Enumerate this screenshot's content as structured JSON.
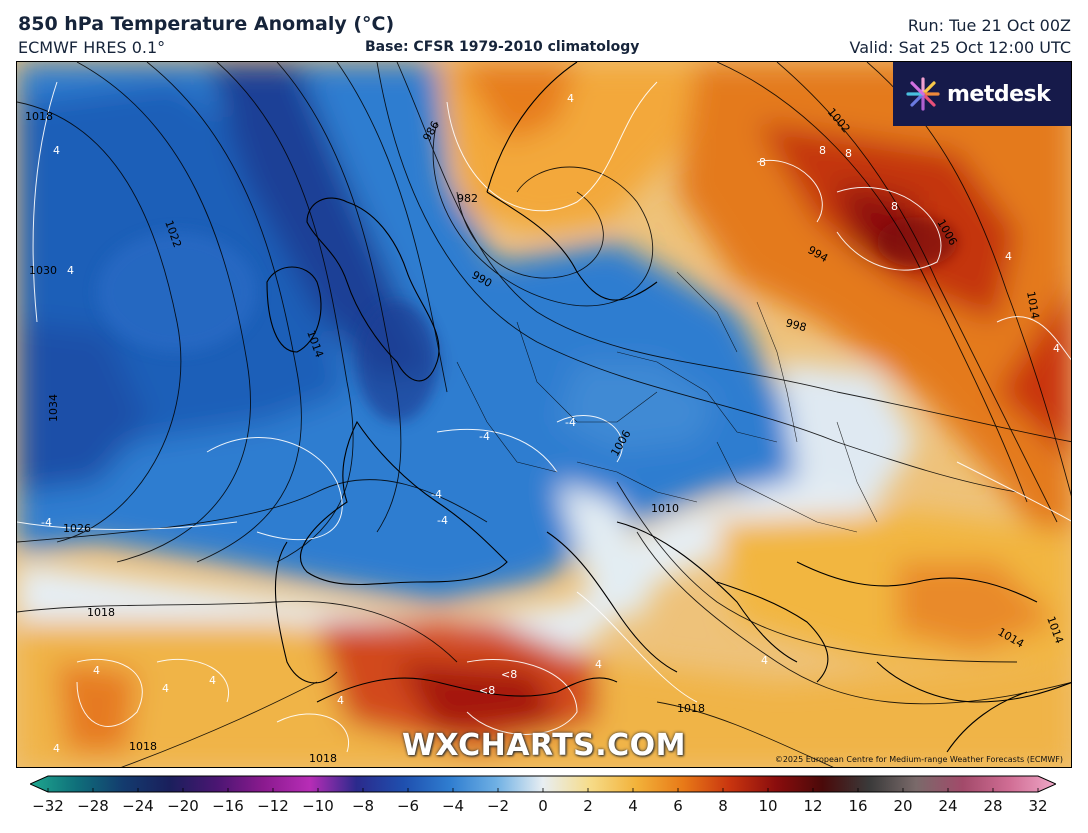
{
  "header": {
    "title": "850 hPa Temperature Anomaly (°C)",
    "model": "ECMWF HRES 0.1°",
    "base": "Base: CFSR 1979-2010 climatology",
    "run": "Run: Tue 21 Oct 00Z",
    "valid": "Valid: Sat 25 Oct 12:00 UTC"
  },
  "branding": {
    "logo_text": "metdesk",
    "watermark": "WXCHARTS.COM",
    "copyright": "©2025 European Centre for Medium-range Weather Forecasts (ECMWF)"
  },
  "colorbar": {
    "ticks": [
      "−32",
      "−28",
      "−24",
      "−20",
      "−16",
      "−12",
      "−10",
      "−8",
      "−6",
      "−4",
      "−2",
      "0",
      "2",
      "4",
      "6",
      "8",
      "10",
      "12",
      "16",
      "20",
      "24",
      "28",
      "32"
    ],
    "colors": [
      "#1fa88f",
      "#0f6f7a",
      "#133b6e",
      "#1a1f5c",
      "#4a1672",
      "#8a1a8e",
      "#b72db6",
      "#2b2a8c",
      "#1f4fae",
      "#2f7dd0",
      "#6fb0e4",
      "#e8eef2",
      "#f6dc8a",
      "#f2b23a",
      "#e87a18",
      "#c9350f",
      "#8a0d0d",
      "#4a0a0a",
      "#3a3a3a",
      "#7a6a6a",
      "#a24a6a",
      "#d06d94",
      "#f0a8c8"
    ]
  },
  "map_labels": {
    "isobars": [
      "1018",
      "1030",
      "1034",
      "1022",
      "1014",
      "1026",
      "1018",
      "1018",
      "1018",
      "986",
      "982",
      "990",
      "1002",
      "994",
      "998",
      "1006",
      "1014",
      "1006",
      "1010",
      "1018",
      "1014",
      "1014"
    ],
    "anomalies": [
      "4",
      "4",
      "4",
      "8",
      "8",
      "8",
      "8",
      "4",
      "4",
      "-4",
      "-4",
      "-4",
      "-4",
      "-4",
      "4",
      "4",
      "4",
      "4",
      "<8",
      "<8",
      "4",
      "4",
      "4"
    ]
  }
}
